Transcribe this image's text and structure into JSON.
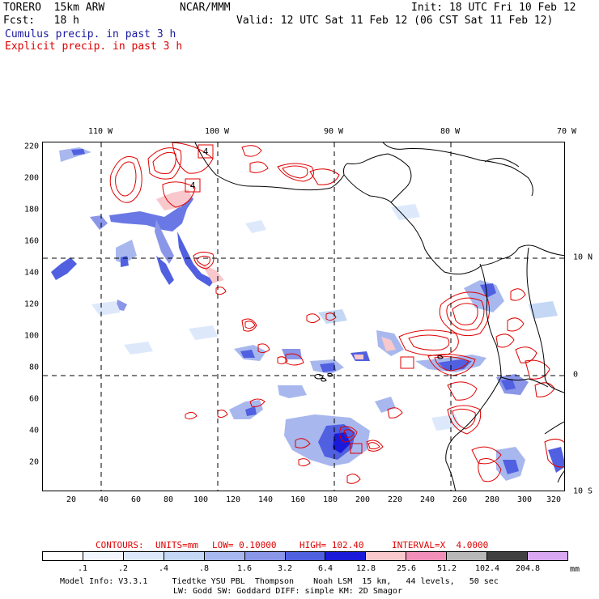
{
  "header": {
    "model_line": "TORERO  15km ARW",
    "center": "NCAR/MMM",
    "init": "Init: 18 UTC Fri 10 Feb 12",
    "fcst": "Fcst:   18 h",
    "valid": "Valid: 12 UTC Sat 11 Feb 12 (06 CST Sat 11 Feb 12)",
    "cumulus": "Cumulus precip. in past 3 h",
    "explicit": "Explicit precip. in past 3 h"
  },
  "axes": {
    "x_ticks": [
      "20",
      "40",
      "60",
      "80",
      "100",
      "120",
      "140",
      "160",
      "180",
      "200",
      "220",
      "240",
      "260",
      "280",
      "300",
      "320"
    ],
    "y_ticks": [
      "20",
      "40",
      "60",
      "80",
      "100",
      "120",
      "140",
      "160",
      "180",
      "200",
      "220"
    ],
    "lon_labels": [
      "110 W",
      "100 W",
      "90 W",
      "80 W",
      "70 W"
    ],
    "lat_labels": [
      "10 N",
      "0",
      "10 S"
    ]
  },
  "box_labels": [
    "4",
    "4"
  ],
  "contours_info": {
    "label": "CONTOURS:",
    "units": "UNITS=mm",
    "low": "LOW= 0.10000",
    "high": "HIGH= 102.40",
    "interval": "INTERVAL=X  4.0000"
  },
  "legend": {
    "levels": [
      ".1",
      ".2",
      ".4",
      ".8",
      "1.6",
      "3.2",
      "6.4",
      "12.8",
      "25.6",
      "51.2",
      "102.4",
      "204.8"
    ],
    "unit": "mm",
    "colors": [
      "#ffffff",
      "#f2f7ff",
      "#dde9fb",
      "#c4d8f5",
      "#a8b8ee",
      "#8a96e8",
      "#5060e0",
      "#1a1ad8",
      "#f8c8cc",
      "#f090b8",
      "#b8b8b8",
      "#404040",
      "#d8a8f0"
    ]
  },
  "footer": {
    "line1": "Model Info: V3.3.1     Tiedtke YSU PBL  Thompson    Noah LSM  15 km,   44 levels,   50 sec",
    "line2": "LW: Godd SW: Goddard DIFF: simple KM: 2D Smagor"
  },
  "colors": {
    "cumulus": "#1a1aa0",
    "explicit": "#e00000",
    "coast": "#000000"
  }
}
